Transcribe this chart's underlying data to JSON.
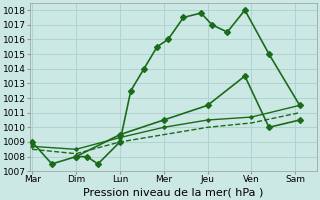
{
  "background_color": "#cce8e4",
  "grid_color": "#aad0cc",
  "line_color": "#1a6b1a",
  "ylim": [
    1007,
    1018.5
  ],
  "yticks": [
    1007,
    1008,
    1009,
    1010,
    1011,
    1012,
    1013,
    1014,
    1015,
    1016,
    1017,
    1018
  ],
  "xlim": [
    -0.05,
    6.5
  ],
  "x_tick_pos": [
    0,
    1,
    2,
    3,
    4,
    5,
    6
  ],
  "x_labels": [
    "Mar",
    "Dim",
    "Lun",
    "Mer",
    "Jeu",
    "Ven",
    "Sam"
  ],
  "line1_x": [
    0.0,
    0.45,
    1.0,
    1.25,
    1.5,
    2.0,
    2.25,
    2.55,
    2.85,
    3.1,
    3.45,
    3.85,
    4.1,
    4.45,
    4.85,
    5.4,
    6.1
  ],
  "line1_y": [
    1009.0,
    1007.5,
    1008.0,
    1008.0,
    1007.5,
    1009.0,
    1012.5,
    1014.0,
    1015.5,
    1016.0,
    1017.5,
    1017.8,
    1017.0,
    1016.5,
    1018.0,
    1015.0,
    1011.5
  ],
  "line2_x": [
    1.0,
    2.0,
    3.0,
    4.0,
    4.85,
    5.4,
    6.1
  ],
  "line2_y": [
    1008.0,
    1009.5,
    1010.5,
    1011.5,
    1013.5,
    1010.0,
    1010.5
  ],
  "line3_x": [
    0.0,
    1.0,
    2.0,
    3.0,
    4.0,
    5.0,
    6.1
  ],
  "line3_y": [
    1008.5,
    1008.2,
    1009.0,
    1009.5,
    1010.0,
    1010.3,
    1011.0
  ],
  "line4_x": [
    0.0,
    1.0,
    2.0,
    3.0,
    4.0,
    5.0,
    6.1
  ],
  "line4_y": [
    1008.7,
    1008.5,
    1009.3,
    1010.0,
    1010.5,
    1010.7,
    1011.5
  ],
  "xlabel": "Pression niveau de la mer( hPa )",
  "xlabel_fontsize": 8,
  "tick_fontsize": 6.5
}
